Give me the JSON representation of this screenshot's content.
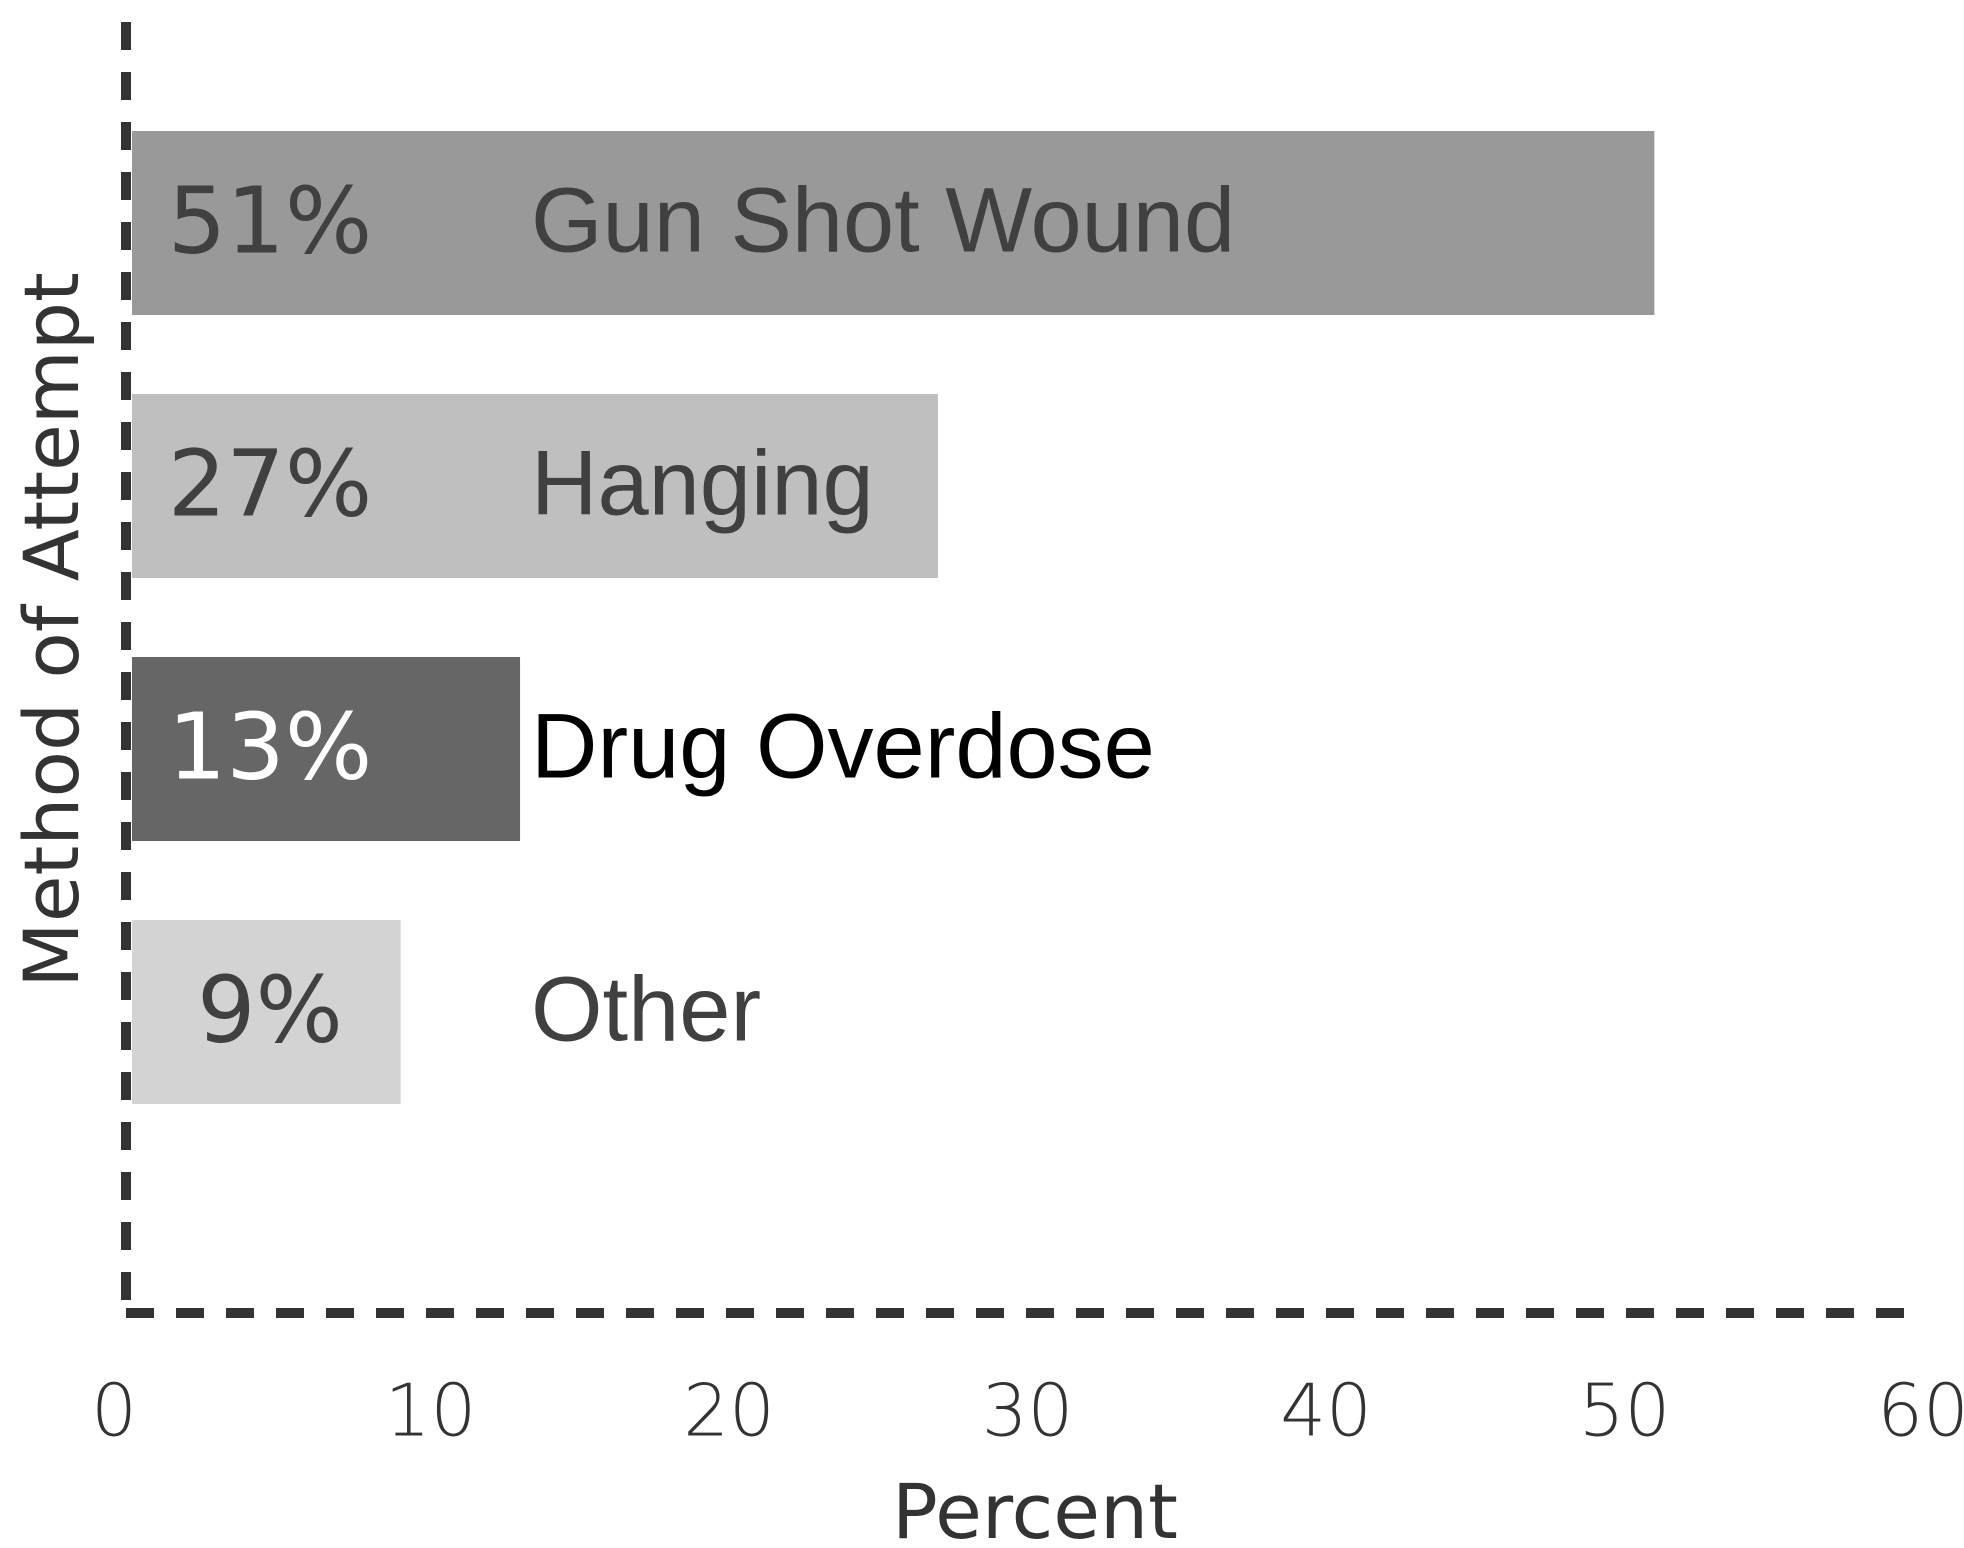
{
  "chart_data": {
    "type": "barh",
    "categories": [
      "Gun Shot Wound",
      "Hanging",
      "Drug Overdose",
      "Other"
    ],
    "values": [
      51,
      27,
      13,
      9
    ],
    "value_labels": [
      "51%",
      "27%",
      "13%",
      "9%"
    ],
    "colors": [
      "#999999",
      "#bfbfbf",
      "#666666",
      "#d3d3d3"
    ],
    "value_label_colors": [
      "#404040",
      "#404040",
      "#ffffff",
      "#404040"
    ],
    "category_label_colors": [
      "#404040",
      "#404040",
      "#000000",
      "#404040"
    ],
    "xlabel": "Percent",
    "ylabel": "Method of Attempt",
    "xlim": [
      0,
      60
    ],
    "xticks": [
      0,
      10,
      20,
      30,
      40,
      50,
      60
    ]
  }
}
